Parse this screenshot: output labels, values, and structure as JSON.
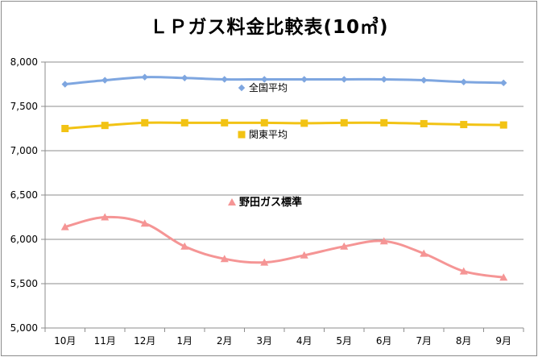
{
  "chart_data": {
    "type": "line",
    "title": "ＬＰガス料金比較表(10㎥)",
    "xlabel": "",
    "ylabel": "",
    "categories": [
      "10月",
      "11月",
      "12月",
      "1月",
      "2月",
      "3月",
      "4月",
      "5月",
      "6月",
      "7月",
      "8月",
      "9月"
    ],
    "ylim": [
      5000,
      8000
    ],
    "ytick_step": 500,
    "ytick_labels": [
      "5,000",
      "5,500",
      "6,000",
      "6,500",
      "7,000",
      "7,500",
      "8,000"
    ],
    "grid": "horizontal",
    "legend": "inline labels next to series",
    "series": [
      {
        "name": "全国平均",
        "color": "#7ea6e0",
        "marker": "diamond",
        "values": [
          7750,
          7795,
          7830,
          7820,
          7805,
          7805,
          7805,
          7805,
          7805,
          7795,
          7775,
          7765
        ]
      },
      {
        "name": "関東平均",
        "color": "#f2c314",
        "marker": "square",
        "values": [
          7250,
          7285,
          7315,
          7315,
          7315,
          7315,
          7310,
          7315,
          7315,
          7305,
          7295,
          7290
        ]
      },
      {
        "name": "野田ガス標準",
        "color": "#f59595",
        "marker": "triangle",
        "values": [
          6140,
          6250,
          6180,
          5920,
          5780,
          5740,
          5820,
          5920,
          5980,
          5840,
          5640,
          5570
        ]
      }
    ]
  }
}
